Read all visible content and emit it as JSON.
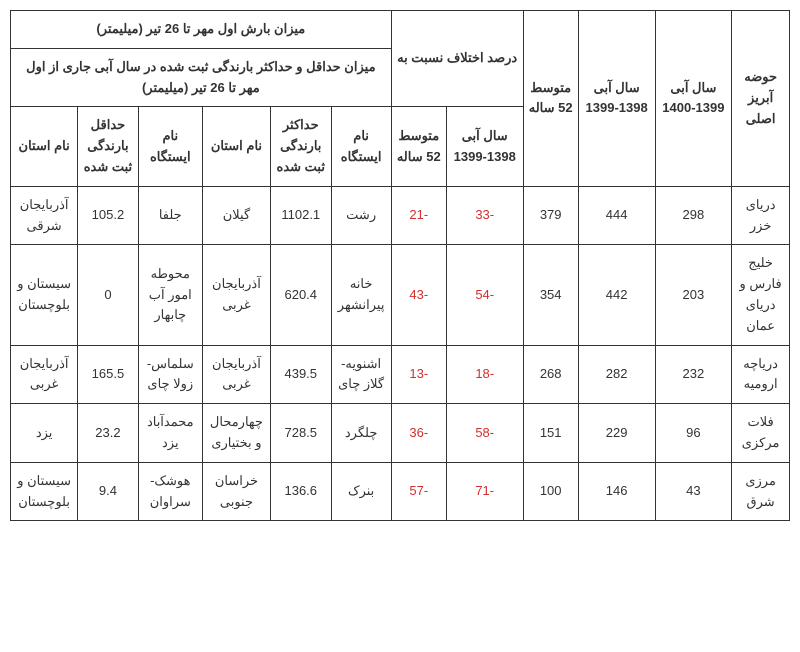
{
  "headers": {
    "basin": "حوضه آبریز اصلی",
    "year_1399_1400": "سال آبی 1399-1400",
    "year_1398_1399": "سال آبی 1398-1399",
    "avg_52": "متوسط 52 ساله",
    "diff_group": "درصد اختلاف نسبت به",
    "diff_1398_1399": "سال آبی 1398-1399",
    "diff_avg52": "متوسط 52 ساله",
    "rain_period": "میزان بارش اول مهر تا 26 تیر (میلیمتر)",
    "min_max_group": "میزان حداقل و حداکثر بارندگی ثبت شده در سال آبی جاری از اول مهر تا 26 تیر (میلیمتر)",
    "station_name": "نام ایستگاه",
    "max_rain": "حداکثر بارندگی ثبت شده",
    "province_name": "نام استان",
    "station_name2": "نام ایستگاه",
    "min_rain": "حداقل بارندگی ثبت شده",
    "province_name2": "نام استان"
  },
  "rows": [
    {
      "basin": "دریای خزر",
      "y99_00": "298",
      "y98_99": "444",
      "avg52": "379",
      "diff_98_99": "-33",
      "diff_avg52": "-21",
      "station_max": "رشت",
      "max_rain": "1102.1",
      "province_max": "گیلان",
      "station_min": "جلفا",
      "min_rain": "105.2",
      "province_min": "آذربایجان شرقی"
    },
    {
      "basin": "خلیج فارس و دریای عمان",
      "y99_00": "203",
      "y98_99": "442",
      "avg52": "354",
      "diff_98_99": "-54",
      "diff_avg52": "-43",
      "station_max": "خانه پیرانشهر",
      "max_rain": "620.4",
      "province_max": "آذربایجان غربی",
      "station_min": "محوطه امور آب چابهار",
      "min_rain": "0",
      "province_min": "سیستان و بلوچستان"
    },
    {
      "basin": "دریاچه ارومیه",
      "y99_00": "232",
      "y98_99": "282",
      "avg52": "268",
      "diff_98_99": "-18",
      "diff_avg52": "-13",
      "station_max": "اشنویه-گلاز چای",
      "max_rain": "439.5",
      "province_max": "آذربایجان غربی",
      "station_min": "سلماس-زولا چای",
      "min_rain": "165.5",
      "province_min": "آذربایجان غربی"
    },
    {
      "basin": "فلات مرکزی",
      "y99_00": "96",
      "y98_99": "229",
      "avg52": "151",
      "diff_98_99": "-58",
      "diff_avg52": "-36",
      "station_max": "چلگرد",
      "max_rain": "728.5",
      "province_max": "چهارمحال و بختیاری",
      "station_min": "محمدآباد یزد",
      "min_rain": "23.2",
      "province_min": "یزد"
    },
    {
      "basin": "مرزی شرق",
      "y99_00": "43",
      "y98_99": "146",
      "avg52": "100",
      "diff_98_99": "-71",
      "diff_avg52": "-57",
      "station_max": "بنرک",
      "max_rain": "136.6",
      "province_max": "خراسان جنوبی",
      "station_min": "هوشک-سراوان",
      "min_rain": "9.4",
      "province_min": "سیستان و بلوچستان"
    }
  ],
  "styling": {
    "negative_color": "#d32f2f",
    "text_color": "#333333",
    "border_color": "#333333",
    "background": "#ffffff",
    "font_family": "Tahoma",
    "font_size": 13
  }
}
